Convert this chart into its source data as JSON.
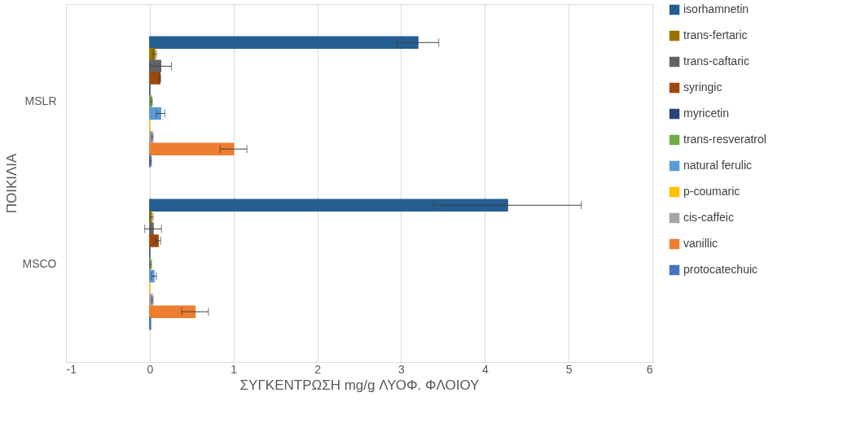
{
  "chart_data": {
    "type": "bar",
    "orientation": "horizontal",
    "xlabel": "ΣΥΓΚΕΝΤΡΩΣΗ mg/g ΛΥΟΦ. ΦΛΟΙΟΥ",
    "ylabel": "ΠΟΙΚΙΛΙΑ",
    "categories": [
      "MSLR",
      "MSCO"
    ],
    "series": [
      {
        "name": "isorhamnetin",
        "color": "#255e91",
        "values": [
          3.2,
          4.27
        ],
        "errors": [
          0.25,
          0.88
        ]
      },
      {
        "name": "trans-fertaric",
        "color": "#997300",
        "values": [
          0.06,
          0.02
        ],
        "errors": [
          0.02,
          0.02
        ]
      },
      {
        "name": "trans-caftaric",
        "color": "#636363",
        "values": [
          0.13,
          0.04
        ],
        "errors": [
          0.13,
          0.1
        ]
      },
      {
        "name": "syringic",
        "color": "#9e480e",
        "values": [
          0.12,
          0.1
        ],
        "errors": [
          0.01,
          0.03
        ]
      },
      {
        "name": "myricetin",
        "color": "#264478",
        "values": [
          0,
          0
        ],
        "errors": [
          null,
          null
        ]
      },
      {
        "name": "trans-resveratrol",
        "color": "#70ad47",
        "values": [
          0.02,
          0.01
        ],
        "errors": [
          0.01,
          0.01
        ]
      },
      {
        "name": "natural ferulic",
        "color": "#5b9bd5",
        "values": [
          0.13,
          0.05
        ],
        "errors": [
          0.05,
          0.03
        ]
      },
      {
        "name": "p-coumaric",
        "color": "#ffc000",
        "values": [
          0,
          0
        ],
        "errors": [
          null,
          null
        ]
      },
      {
        "name": "cis-caffeic",
        "color": "#a5a5a5",
        "values": [
          0.03,
          0.03
        ],
        "errors": [
          0.01,
          0.01
        ]
      },
      {
        "name": "vanillic",
        "color": "#ed7d31",
        "values": [
          1.0,
          0.54
        ],
        "errors": [
          0.16,
          0.16
        ]
      },
      {
        "name": "protocatechuic",
        "color": "#4472c4",
        "values": [
          0.01,
          0.01
        ],
        "errors": [
          0.01,
          null
        ]
      }
    ],
    "xlim": [
      -1,
      6
    ],
    "xticks": [
      -1,
      0,
      1,
      2,
      3,
      4,
      5,
      6
    ],
    "grid": "x",
    "legend": "right"
  }
}
